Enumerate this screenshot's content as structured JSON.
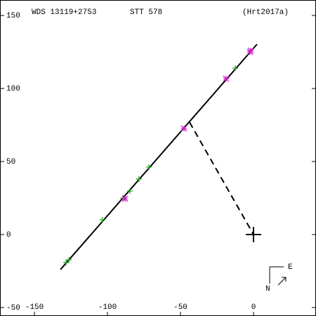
{
  "chart_data": {
    "type": "scatter",
    "title": "WDS 13119+2753",
    "subtitle": "STT 578",
    "reference": "(Hrt2017a)",
    "annotations": [
      "E",
      "N"
    ],
    "xlim": [
      -173.6,
      42.8
    ],
    "ylim": [
      -55.8,
      160.6
    ],
    "xticks": [
      -150,
      -100,
      -50,
      0
    ],
    "yticks": [
      -50,
      0,
      50,
      100,
      150
    ],
    "series": [
      {
        "style": "line",
        "color": "#000000",
        "x": [
          -132.2,
          2.4
        ],
        "y": [
          -24.0,
          130.3
        ]
      },
      {
        "style": "dashed",
        "color": "#000000",
        "x": [
          -43.8,
          0
        ],
        "y": [
          76.9,
          0
        ]
      },
      {
        "style": "plus",
        "color": "#22aa22",
        "x": [
          -128.4,
          -126.4,
          -103.4,
          -89.4,
          -84.6,
          -78.4,
          -71.6,
          -12.5
        ],
        "y": [
          -19.2,
          -17.3,
          10.1,
          25,
          29.8,
          38,
          46.2,
          113.9
        ]
      },
      {
        "style": "star",
        "color": "#cc22cc",
        "x": [
          -88,
          -47.6,
          -18.8,
          -2.4,
          -1.9
        ],
        "y": [
          24.5,
          72.6,
          106.7,
          125,
          126
        ]
      },
      {
        "style": "bigplus",
        "color": "#000000",
        "x": [
          0
        ],
        "y": [
          0
        ]
      }
    ]
  }
}
